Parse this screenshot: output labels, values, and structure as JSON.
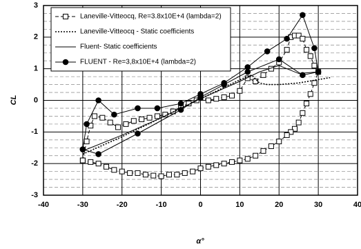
{
  "chart_data": {
    "type": "line",
    "x_label": "α°",
    "y_label": "CL",
    "xlim": [
      -40,
      40
    ],
    "ylim": [
      -3,
      3
    ],
    "xticks": [
      -40,
      -30,
      -20,
      -10,
      0,
      10,
      20,
      30,
      40
    ],
    "yticks": [
      -3,
      -2,
      -1,
      0,
      1,
      2,
      3
    ],
    "y_minor_grid": [
      -2.75,
      -2.5,
      -2.25,
      -1.75,
      -1.5,
      -1.25,
      -0.75,
      -0.5,
      -0.25,
      0.25,
      0.5,
      0.75,
      1.25,
      1.5,
      1.75,
      2.25,
      2.5,
      2.75
    ],
    "grid": true,
    "legend": "upper left",
    "series": [
      {
        "name": "Laneville-Vitteocq, Re=3.8x10E+4 (lambda=2)",
        "color": "#000000",
        "style": "dashed",
        "marker": "open-square",
        "x": [
          -30,
          -29,
          -28,
          -27,
          -25,
          -23,
          -21,
          -19,
          -17,
          -15,
          -13,
          -11,
          -9,
          -7,
          -5,
          -3,
          -1,
          0,
          2,
          4,
          6,
          8,
          10,
          12,
          14,
          16,
          18,
          20,
          22,
          23,
          24,
          25,
          26,
          27,
          28,
          29,
          30,
          29,
          28,
          27,
          26,
          25,
          24,
          23,
          22,
          20,
          18,
          16,
          14,
          12,
          10,
          8,
          6,
          4,
          2,
          0,
          -2,
          -4,
          -6,
          -8,
          -10,
          -12,
          -14,
          -16,
          -18,
          -20,
          -22,
          -24,
          -26,
          -28,
          -30
        ],
        "values": [
          -1.9,
          -1.3,
          -0.8,
          -0.5,
          -0.55,
          -0.7,
          -0.85,
          -0.75,
          -0.65,
          -0.6,
          -0.55,
          -0.5,
          -0.45,
          -0.35,
          -0.2,
          -0.1,
          0,
          0.1,
          0,
          0.05,
          0.1,
          0.15,
          0.3,
          0.7,
          0.6,
          0.8,
          1,
          1.2,
          1.6,
          2,
          2.05,
          2.05,
          1.95,
          1.6,
          1.4,
          1.1,
          0.9,
          0.55,
          0.2,
          -0.1,
          -0.4,
          -0.7,
          -0.9,
          -1,
          -1.1,
          -1.3,
          -1.45,
          -1.6,
          -1.75,
          -1.85,
          -1.9,
          -1.95,
          -2,
          -2.05,
          -2.1,
          -2.15,
          -2.25,
          -2.3,
          -2.35,
          -2.35,
          -2.4,
          -2.38,
          -2.35,
          -2.3,
          -2.3,
          -2.25,
          -2.2,
          -2.1,
          -2,
          -1.95,
          -1.9
        ]
      },
      {
        "name": "Laneville-Vitteocq - Static coefficients",
        "color": "#000000",
        "style": "dotted",
        "marker": "none",
        "x": [
          -30,
          -20,
          -10,
          0,
          10,
          13,
          15,
          17,
          20,
          25,
          33
        ],
        "values": [
          -1.7,
          -1.15,
          -0.55,
          0.05,
          0.65,
          0.8,
          0.55,
          0.5,
          0.5,
          0.55,
          0.72
        ]
      },
      {
        "name": "Fluent- Static coefficients",
        "color": "#000000",
        "style": "solid",
        "marker": "none",
        "x": [
          -30,
          -20,
          -10,
          0,
          10,
          15,
          20,
          25,
          30
        ],
        "values": [
          -1.6,
          -1.1,
          -0.55,
          0.05,
          0.6,
          0.9,
          1.1,
          0.85,
          0.9
        ]
      },
      {
        "name": "FLUENT - Re=3,8x10E+4 (lambda=2)",
        "color": "#000000",
        "style": "solid",
        "marker": "filled-circle",
        "x": [
          -30,
          -29,
          -26,
          -22,
          -16,
          -11,
          -5,
          0,
          6,
          12,
          17,
          22,
          26,
          29,
          30,
          26,
          20,
          12,
          6,
          0,
          -5,
          -16,
          -26,
          -30
        ],
        "values": [
          -1.55,
          -0.75,
          0,
          -0.45,
          -0.25,
          -0.25,
          -0.1,
          0.2,
          0.55,
          1.05,
          1.55,
          1.95,
          2.7,
          1.65,
          0.9,
          0.8,
          1.3,
          0.9,
          0.5,
          0.1,
          -0.3,
          -1.05,
          -1.7,
          -1.55
        ]
      }
    ]
  }
}
